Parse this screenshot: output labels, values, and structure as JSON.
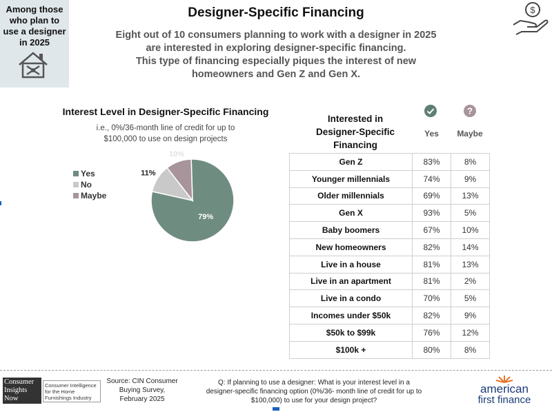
{
  "tag": {
    "text_lines": [
      "Among those",
      "who plan to",
      "use a designer",
      "in 2025"
    ]
  },
  "header": {
    "title": "Designer-Specific Financing",
    "subtitle_lines": [
      "Eight out of 10 consumers planning to work with a designer in 2025",
      "are interested in exploring designer-specific financing.",
      "This type of financing especially piques the interest of new",
      "homeowners and Gen Z and Gen X."
    ]
  },
  "chart_data": [
    {
      "type": "pie",
      "title": "Interest Level in Designer-Specific Financing",
      "subtitle_lines": [
        "i.e., 0%/36-month line of credit for up to",
        "$100,000 to use on design projects"
      ],
      "categories": [
        "Yes",
        "No",
        "Maybe"
      ],
      "values": [
        79,
        11,
        10
      ],
      "labels": [
        "79%",
        "11%",
        "10%"
      ],
      "colors": [
        "#6f8c80",
        "#c9c9c9",
        "#a8949b"
      ],
      "legend_placement": "left"
    },
    {
      "type": "table",
      "header_lines": [
        "Interested in",
        "Designer-Specific",
        "Financing"
      ],
      "columns": [
        "Yes",
        "Maybe"
      ],
      "rows": [
        {
          "label": "Gen Z",
          "yes": "83%",
          "maybe": "8%"
        },
        {
          "label": "Younger millennials",
          "yes": "74%",
          "maybe": "9%"
        },
        {
          "label": "Older millennials",
          "yes": "69%",
          "maybe": "13%"
        },
        {
          "label": "Gen X",
          "yes": "93%",
          "maybe": "5%"
        },
        {
          "label": "Baby boomers",
          "yes": "67%",
          "maybe": "10%"
        },
        {
          "label": "New homeowners",
          "yes": "82%",
          "maybe": "14%"
        },
        {
          "label": "Live in a house",
          "yes": "81%",
          "maybe": "13%"
        },
        {
          "label": "Live in an apartment",
          "yes": "81%",
          "maybe": "2%"
        },
        {
          "label": "Live in a condo",
          "yes": "70%",
          "maybe": "5%"
        },
        {
          "label": "Incomes under $50k",
          "yes": "82%",
          "maybe": "9%"
        },
        {
          "label": "$50k to $99k",
          "yes": "76%",
          "maybe": "12%"
        },
        {
          "label": "$100k +",
          "yes": "80%",
          "maybe": "8%"
        }
      ]
    }
  ],
  "footer": {
    "cin_logo_lines": [
      "Consumer",
      "Insights",
      "Now"
    ],
    "cin_text_lines": [
      "Consumer Intelligence",
      "for the Home",
      "Furnishings Industry"
    ],
    "source_lines": [
      "Source: CIN Consumer",
      "Buying Survey,",
      "February 2025"
    ],
    "question_lines": [
      "Q: If planning to use a designer: What is your interest level in a",
      "designer-specific financing option (0%/36- month line of credit for up to",
      "$100,000) to use for your design project?"
    ],
    "af_line1": "american",
    "af_line2": "first finance"
  },
  "icons": {
    "house": "house-tools-icon",
    "money": "money-hand-icon",
    "yes": "check-circle-icon",
    "maybe": "question-circle-icon"
  }
}
